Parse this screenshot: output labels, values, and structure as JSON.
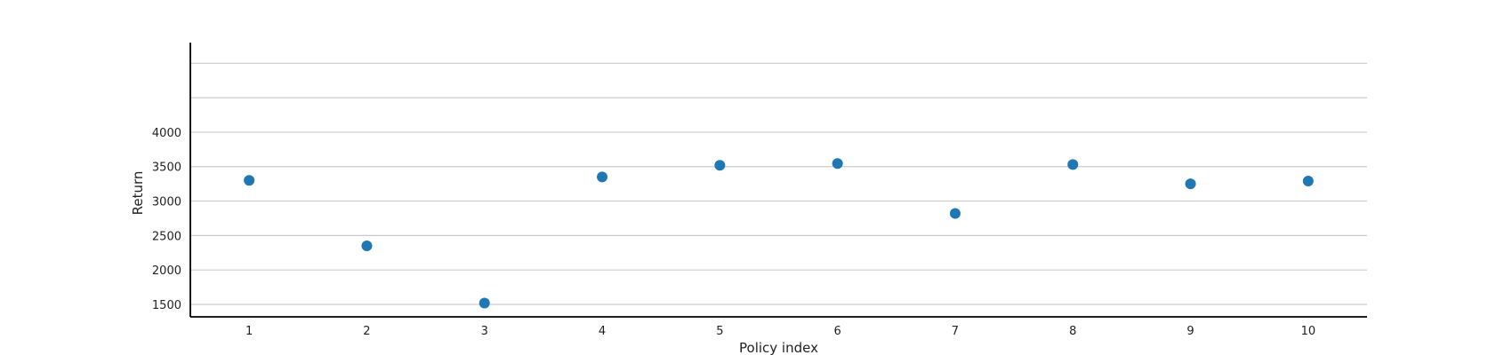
{
  "chart_data": {
    "type": "scatter",
    "title": "",
    "xlabel": "Policy index",
    "ylabel": "Return",
    "x": [
      1,
      2,
      3,
      4,
      5,
      6,
      7,
      8,
      9,
      10
    ],
    "series": [
      {
        "values": [
          3300,
          2350,
          1520,
          3350,
          3520,
          3545,
          2820,
          3530,
          3250,
          3290
        ]
      }
    ],
    "x_ticks": [
      "1",
      "2",
      "3",
      "4",
      "5",
      "6",
      "7",
      "8",
      "9",
      "10"
    ],
    "y_ticks": [
      "1500",
      "2000",
      "2500",
      "3000",
      "3500",
      "4000"
    ],
    "y_gridlines": [
      1500,
      2000,
      2500,
      3000,
      3500,
      4000,
      4500,
      5000
    ],
    "xlim": [
      0.5,
      10.5
    ],
    "ylim": [
      1320,
      5300
    ],
    "grid": true,
    "legend": "none",
    "marker_color": "#1f77b4"
  }
}
